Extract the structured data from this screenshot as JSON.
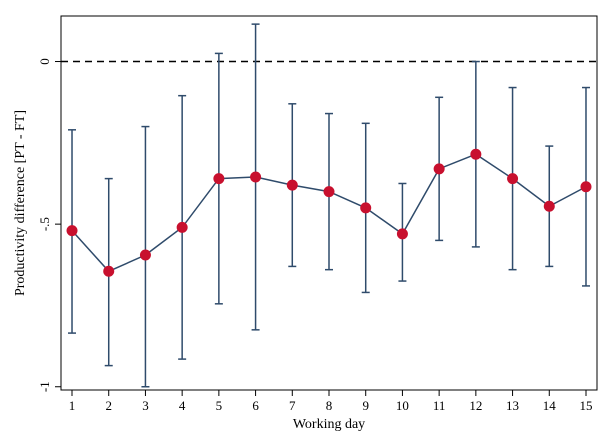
{
  "chart_data": {
    "type": "scatter",
    "title": "",
    "xlabel": "Working day",
    "ylabel": "Productivity difference [PT - FT]",
    "xlim": [
      0.7,
      15.3
    ],
    "ylim": [
      -1.01,
      0.14
    ],
    "x_ticks": [
      1,
      2,
      3,
      4,
      5,
      6,
      7,
      8,
      9,
      10,
      11,
      12,
      13,
      14,
      15
    ],
    "x_tick_labels": [
      "1",
      "2",
      "3",
      "4",
      "5",
      "6",
      "7",
      "8",
      "9",
      "10",
      "11",
      "12",
      "13",
      "14",
      "15"
    ],
    "y_ticks": [
      0,
      -0.5,
      -1
    ],
    "y_tick_labels": [
      "0",
      "-.5",
      "-1"
    ],
    "reference_line": {
      "y": 0,
      "style": "dashed"
    },
    "grid": false,
    "series": [
      {
        "x": [
          1,
          2,
          3,
          4,
          5,
          6,
          7,
          8,
          9,
          10,
          11,
          12,
          13,
          14,
          15
        ],
        "values": [
          -0.52,
          -0.645,
          -0.595,
          -0.51,
          -0.36,
          -0.355,
          -0.38,
          -0.4,
          -0.45,
          -0.53,
          -0.33,
          -0.285,
          -0.36,
          -0.445,
          -0.385
        ],
        "ci_lower": [
          -0.835,
          -0.935,
          -1.0,
          -0.915,
          -0.745,
          -0.825,
          -0.63,
          -0.64,
          -0.71,
          -0.675,
          -0.55,
          -0.57,
          -0.64,
          -0.63,
          -0.69
        ],
        "ci_upper": [
          -0.21,
          -0.36,
          -0.2,
          -0.105,
          0.025,
          0.115,
          -0.13,
          -0.16,
          -0.19,
          -0.375,
          -0.11,
          0.0,
          -0.08,
          -0.26,
          -0.08
        ]
      }
    ],
    "colors": {
      "line": "#2f4b6b",
      "errorbar": "#2f4b6b",
      "marker": "#c8102e",
      "reference": "#000000"
    }
  }
}
